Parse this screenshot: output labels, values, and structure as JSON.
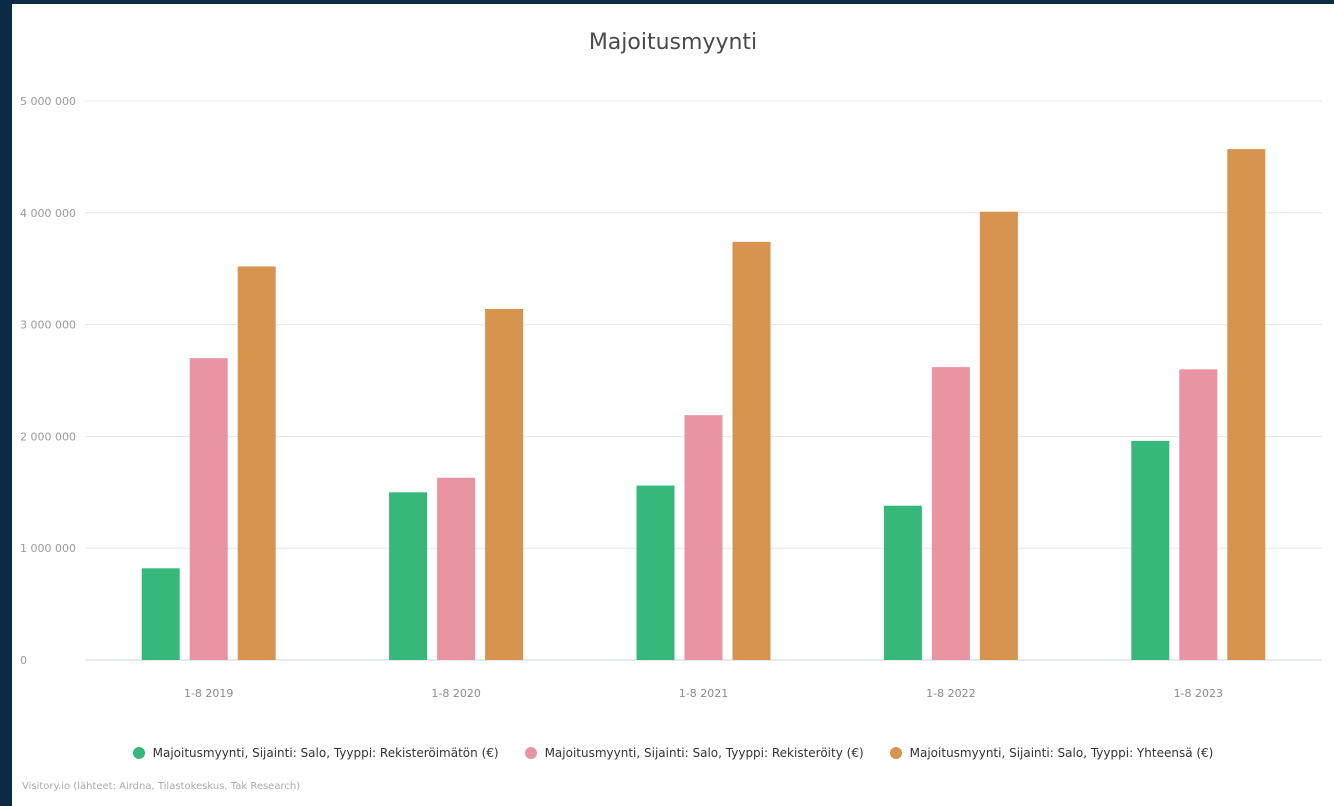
{
  "chart_data": {
    "type": "bar",
    "title": "Majoitusmyynti",
    "categories": [
      "1-8 2019",
      "1-8 2020",
      "1-8 2021",
      "1-8 2022",
      "1-8 2023"
    ],
    "series": [
      {
        "name": "Majoitusmyynti, Sijainti: Salo, Tyyppi: Rekisteröimätön (€)",
        "color": "#36b87a",
        "values": [
          820000,
          1500000,
          1560000,
          1380000,
          1960000
        ]
      },
      {
        "name": "Majoitusmyynti, Sijainti: Salo, Tyyppi: Rekisteröity (€)",
        "color": "#e894a3",
        "values": [
          2700000,
          1630000,
          2190000,
          2620000,
          2600000
        ]
      },
      {
        "name": "Majoitusmyynti, Sijainti: Salo, Tyyppi: Yhteensä (€)",
        "color": "#d6944e",
        "values": [
          3520000,
          3140000,
          3740000,
          4010000,
          4570000
        ]
      }
    ],
    "yticks": [
      "0",
      "1 000 000",
      "2 000 000",
      "3 000 000",
      "4 000 000",
      "5 000 000"
    ],
    "ylim": [
      0,
      5000000
    ],
    "grid": true,
    "legend_position": "bottom"
  },
  "source_text": "Visitory.io (lähteet: Airdna, Tilastokeskus, Tak Research)"
}
